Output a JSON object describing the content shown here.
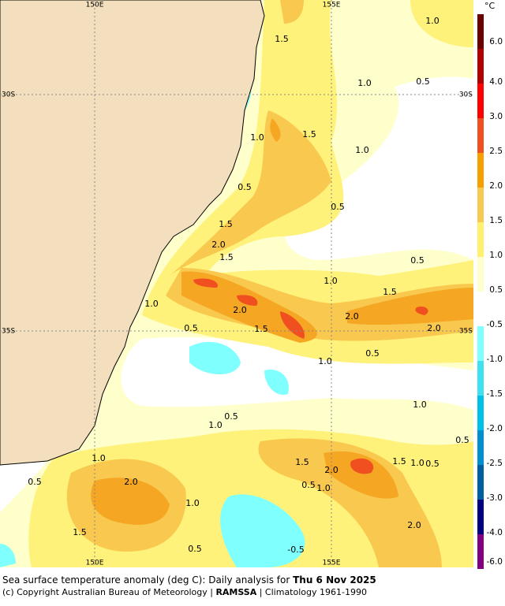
{
  "map": {
    "graticule": {
      "top": [
        "150E",
        "155E"
      ],
      "bottom": [
        "150E",
        "155E"
      ],
      "left": [
        "30S",
        "35S"
      ],
      "right": [
        "30S",
        "35S"
      ]
    },
    "contour_labels": [
      "1.0",
      "1.5",
      "1.0",
      "0.5",
      "1.5",
      "1.0",
      "1.0",
      "0.5",
      "0.5",
      "1.5",
      "2.0",
      "1.5",
      "0.5",
      "1.0",
      "1.5",
      "1.0",
      "2.0",
      "2.0",
      "0.5",
      "1.5",
      "2.0",
      "0.5",
      "1.0",
      "1.0",
      "0.5",
      "1.0",
      "0.5",
      "1.0",
      "1.5",
      "1.5",
      "1.0",
      "0.5",
      "2.0",
      "0.5",
      "2.0",
      "0.5",
      "1.0",
      "1.0",
      "2.0",
      "1.5",
      "0.5",
      "-0.5"
    ],
    "colorbar": {
      "unit": "°C",
      "labels": [
        "6.0",
        "4.0",
        "3.0",
        "2.5",
        "2.0",
        "1.5",
        "1.0",
        "0.5",
        "-0.5",
        "-1.0",
        "-1.5",
        "-2.0",
        "-2.5",
        "-3.0",
        "-4.0",
        "-6.0"
      ]
    }
  },
  "caption": {
    "line1": "Sea surface temperature anomaly (deg C): Daily analysis for ",
    "date": "Thu 6 Nov 2025",
    "line2_start": "(c) Copyright Australian Bureau of Meteorology | ",
    "agency": "RAMSSA",
    "line2_end": " | Climatology 1961-1990"
  }
}
